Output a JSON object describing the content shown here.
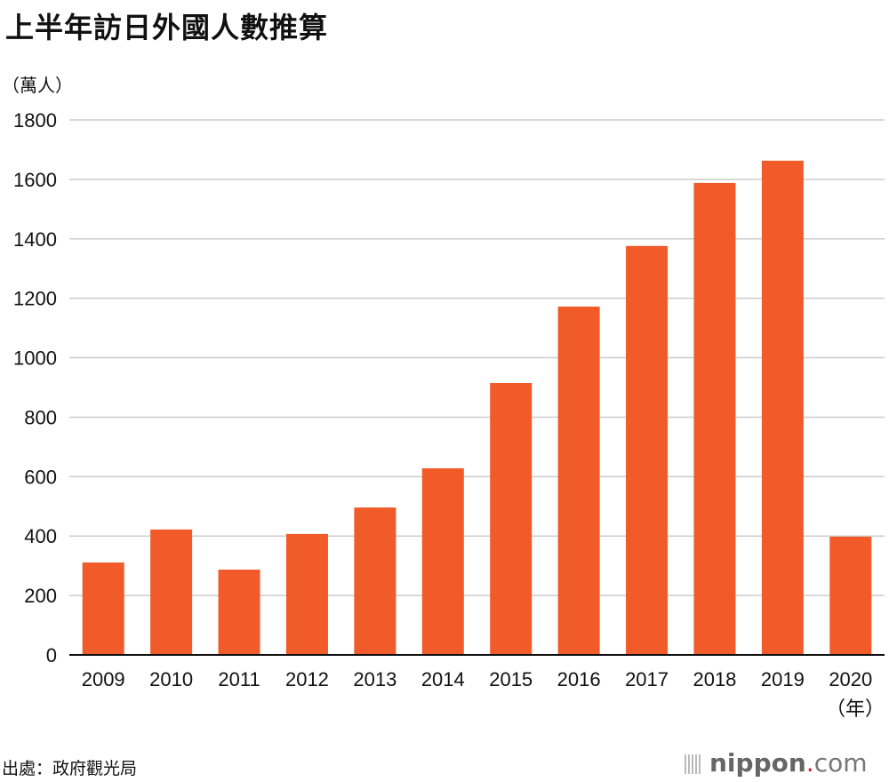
{
  "chart_data": {
    "type": "bar",
    "title": "上半年訪日外國人數推算",
    "ylabel": "（萬人）",
    "xlabel": "（年）",
    "categories": [
      "2009",
      "2010",
      "2011",
      "2012",
      "2013",
      "2014",
      "2015",
      "2016",
      "2017",
      "2018",
      "2019",
      "2020"
    ],
    "values": [
      311,
      422,
      287,
      407,
      496,
      628,
      915,
      1172,
      1376,
      1588,
      1663,
      398
    ],
    "ylim": [
      0,
      1800
    ],
    "yticks": [
      0,
      200,
      400,
      600,
      800,
      1000,
      1200,
      1400,
      1600,
      1800
    ],
    "grid": true,
    "bar_color": "#f15a29",
    "grid_color": "#cccccc"
  },
  "source": "出處：政府觀光局",
  "logo": {
    "brand": "nippon",
    "dot": ".",
    "suffix": "com"
  }
}
